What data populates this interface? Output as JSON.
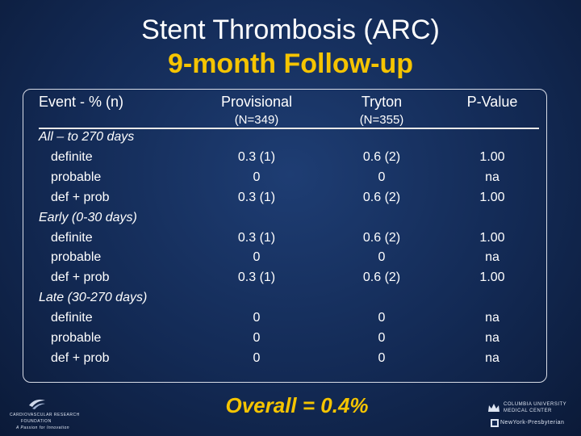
{
  "title": {
    "line1": "Stent Thrombosis (ARC)",
    "line2": "9-month Follow-up"
  },
  "table": {
    "headers": {
      "event": "Event - % (n)",
      "provisional": "Provisional",
      "provisional_n": "(N=349)",
      "tryton": "Tryton",
      "tryton_n": "(N=355)",
      "pvalue": "P-Value"
    },
    "rows": [
      {
        "label": "All – to 270 days",
        "group": true,
        "provisional": "",
        "tryton": "",
        "pvalue": ""
      },
      {
        "label": "definite",
        "group": false,
        "provisional": "0.3 (1)",
        "tryton": "0.6 (2)",
        "pvalue": "1.00"
      },
      {
        "label": "probable",
        "group": false,
        "provisional": "0",
        "tryton": "0",
        "pvalue": "na"
      },
      {
        "label": "def + prob",
        "group": false,
        "provisional": "0.3 (1)",
        "tryton": "0.6 (2)",
        "pvalue": "1.00"
      },
      {
        "label": "Early (0-30 days)",
        "group": true,
        "provisional": "",
        "tryton": "",
        "pvalue": ""
      },
      {
        "label": "definite",
        "group": false,
        "provisional": "0.3 (1)",
        "tryton": "0.6 (2)",
        "pvalue": "1.00"
      },
      {
        "label": "probable",
        "group": false,
        "provisional": "0",
        "tryton": "0",
        "pvalue": "na"
      },
      {
        "label": "def + prob",
        "group": false,
        "provisional": "0.3 (1)",
        "tryton": "0.6 (2)",
        "pvalue": "1.00"
      },
      {
        "label": "Late (30-270 days)",
        "group": true,
        "provisional": "",
        "tryton": "",
        "pvalue": ""
      },
      {
        "label": "definite",
        "group": false,
        "provisional": "0",
        "tryton": "0",
        "pvalue": "na"
      },
      {
        "label": "probable",
        "group": false,
        "provisional": "0",
        "tryton": "0",
        "pvalue": "na"
      },
      {
        "label": "def + prob",
        "group": false,
        "provisional": "0",
        "tryton": "0",
        "pvalue": "na"
      }
    ]
  },
  "overall": "Overall = 0.4%",
  "logos": {
    "left_line1": "CARDIOVASCULAR RESEARCH",
    "left_line2": "FOUNDATION",
    "left_line3": "A Passion for Innovation",
    "right_line1": "COLUMBIA UNIVERSITY",
    "right_line2": "MEDICAL CENTER",
    "right_line3": "NewYork-Presbyterian"
  },
  "colors": {
    "background": "#132a55",
    "accent": "#f5c400",
    "text": "#ffffff"
  }
}
